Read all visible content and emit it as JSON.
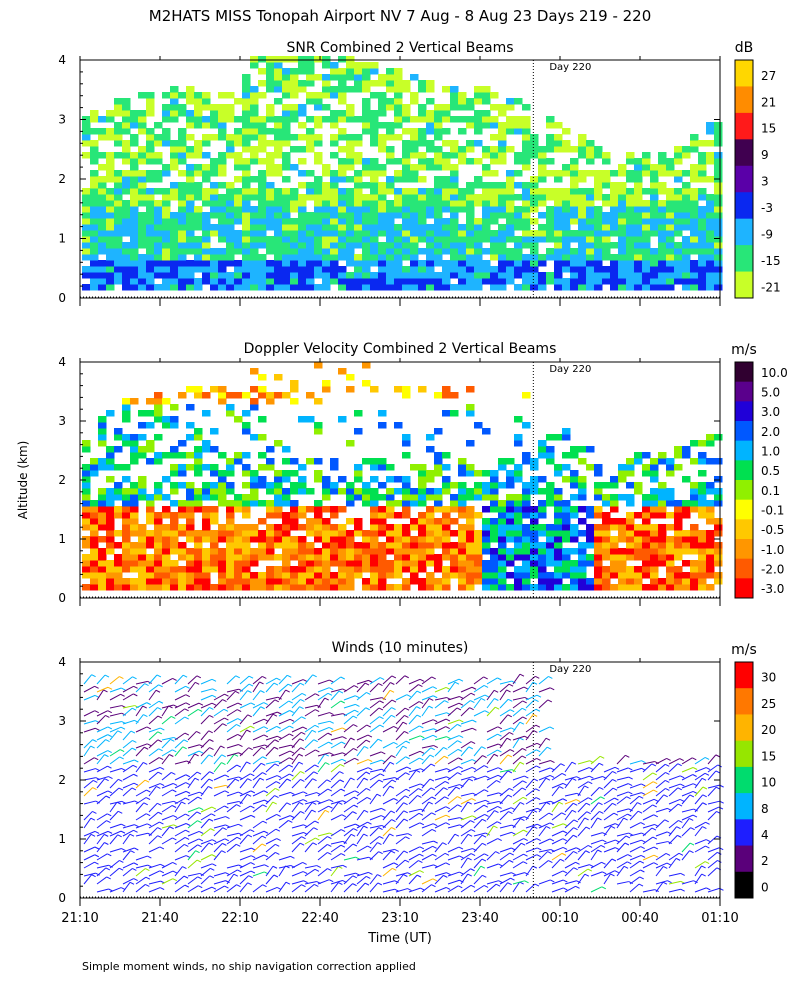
{
  "title": "M2HATS MISS Tonopah Airport NV   7 Aug -  8 Aug 23 Days 219 - 220",
  "footnote": "Simple moment winds, no ship navigation correction applied",
  "shared_axes": {
    "ylabel": "Altitude (km)",
    "xlabel": "Time (UT)",
    "x_ticks": [
      "21:10",
      "21:40",
      "22:10",
      "22:40",
      "23:10",
      "23:40",
      "00:10",
      "00:40",
      "01:10"
    ],
    "y_ticks": [
      "0",
      "1",
      "2",
      "3",
      "4"
    ],
    "day_marker": {
      "label": "Day 220",
      "time": "00:00"
    }
  },
  "chart_data": [
    {
      "type": "heatmap",
      "title": "SNR Combined 2 Vertical Beams",
      "units": "dB",
      "x_range": [
        "21:10",
        "01:10"
      ],
      "ylim": [
        0,
        4
      ],
      "colorbar": {
        "labels": [
          "27",
          "21",
          "15",
          "9",
          "3",
          "-3",
          "-9",
          "-15",
          "-21"
        ],
        "colors": [
          "#FFD700",
          "#FF8C00",
          "#FF1A1A",
          "#400050",
          "#5A00A8",
          "#0A28F0",
          "#1EB4FF",
          "#28E678",
          "#C8FF28"
        ]
      }
    },
    {
      "type": "heatmap",
      "title": "Doppler Velocity Combined 2 Vertical Beams",
      "units": "m/s",
      "x_range": [
        "21:10",
        "01:10"
      ],
      "ylim": [
        0,
        4
      ],
      "colorbar": {
        "labels": [
          "10.0",
          "5.0",
          "3.0",
          "2.0",
          "1.0",
          "0.5",
          "0.1",
          "-0.1",
          "-0.5",
          "-1.0",
          "-2.0",
          "-3.0"
        ],
        "colors": [
          "#300030",
          "#5A008C",
          "#2000D8",
          "#0058FF",
          "#00B4FF",
          "#00E050",
          "#90F000",
          "#FFFF00",
          "#FFC800",
          "#FF9600",
          "#FF5A00",
          "#FF0000"
        ]
      }
    },
    {
      "type": "scatter",
      "title": "Winds (10 minutes)",
      "units": "m/s",
      "x_range": [
        "21:10",
        "01:10"
      ],
      "ylim": [
        0,
        4
      ],
      "colorbar": {
        "labels": [
          "30",
          "25",
          "20",
          "15",
          "10",
          "8",
          "4",
          "2",
          "0"
        ],
        "colors": [
          "#FF0000",
          "#FF7800",
          "#FFB400",
          "#96E600",
          "#00DC6E",
          "#00B4FF",
          "#1E1EFF",
          "#5A007A",
          "#000000"
        ]
      }
    }
  ]
}
